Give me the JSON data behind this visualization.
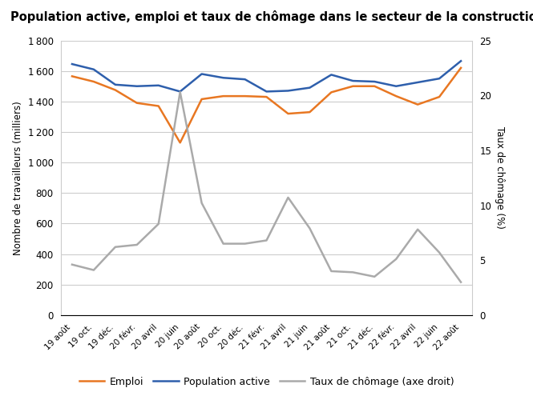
{
  "title": "Population active, emploi et taux de chômage dans le secteur de la construction (%), Canada",
  "xlabel_labels": [
    "19 août",
    "19 oct.",
    "19 déc.",
    "20 févr.",
    "20 avril",
    "20 juin",
    "20 août",
    "20 oct.",
    "20 déc.",
    "21 févr.",
    "21 avril",
    "21 juin",
    "21 août",
    "21 oct.",
    "21 déc.",
    "22 févr.",
    "22 avril",
    "22 juin",
    "22 août"
  ],
  "emploi": [
    1565,
    1530,
    1475,
    1390,
    1370,
    1130,
    1415,
    1435,
    1435,
    1430,
    1320,
    1330,
    1460,
    1500,
    1500,
    1435,
    1380,
    1430,
    1620
  ],
  "population_active": [
    1645,
    1610,
    1510,
    1500,
    1505,
    1465,
    1580,
    1555,
    1545,
    1465,
    1470,
    1490,
    1575,
    1535,
    1530,
    1500,
    1525,
    1550,
    1665
  ],
  "taux_chomage": [
    4.6,
    4.1,
    6.2,
    6.4,
    8.3,
    20.3,
    10.2,
    6.5,
    6.5,
    6.8,
    10.7,
    7.9,
    4.0,
    3.9,
    3.5,
    5.1,
    7.8,
    5.7,
    3.0
  ],
  "ylabel_left": "Nombre de travailleurs (milliers)",
  "ylabel_right": "Taux de chômage (%)",
  "ylim_left": [
    0,
    1800
  ],
  "ylim_right": [
    0,
    25
  ],
  "yticks_left": [
    0,
    200,
    400,
    600,
    800,
    1000,
    1200,
    1400,
    1600,
    1800
  ],
  "yticks_right": [
    0,
    5,
    10,
    15,
    20,
    25
  ],
  "color_emploi": "#E87722",
  "color_population": "#2E5FAC",
  "color_taux": "#AAAAAA",
  "legend_labels": [
    "Emploi",
    "Population active",
    "Taux de chômage (axe droit)"
  ],
  "background_color": "#FFFFFF",
  "grid_color": "#CCCCCC",
  "title_fontsize": 10.5,
  "axis_label_fontsize": 8.5,
  "tick_fontsize": 8.5,
  "legend_fontsize": 9
}
